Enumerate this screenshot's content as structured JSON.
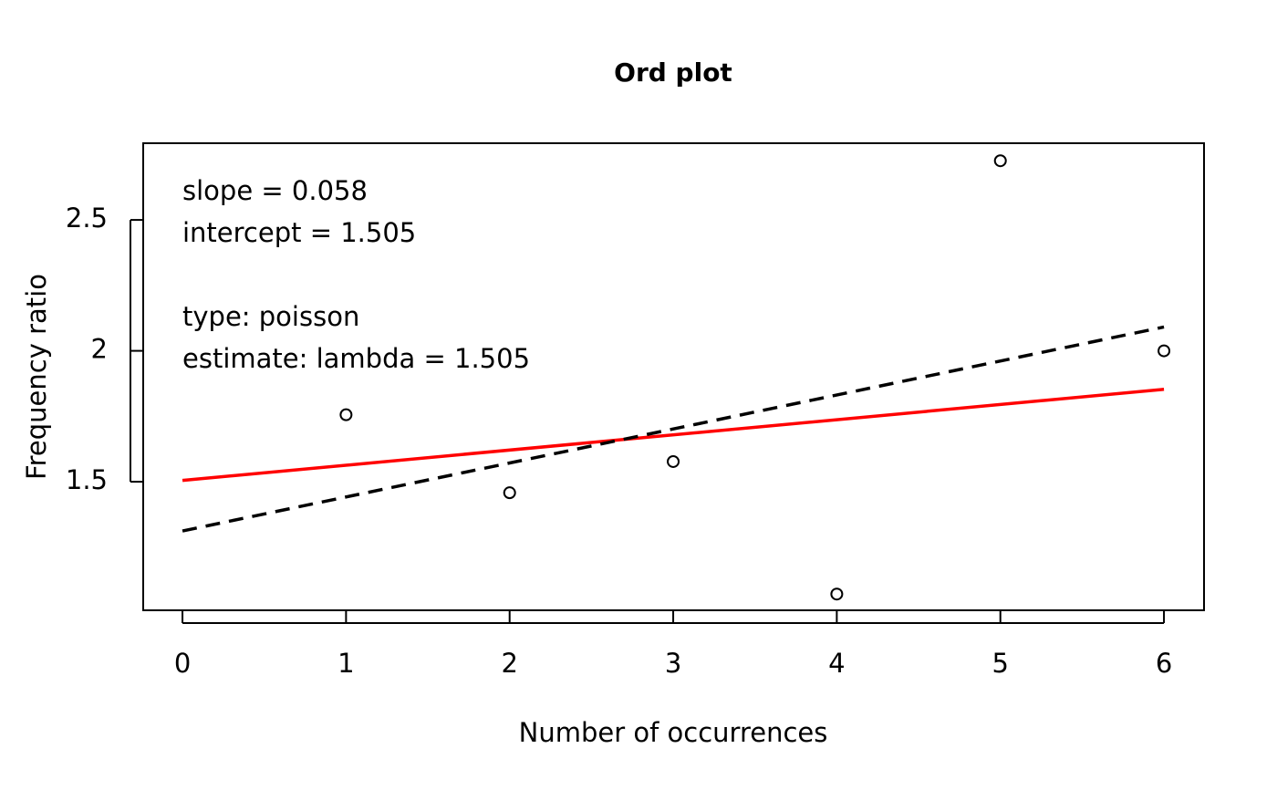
{
  "chart_data": {
    "type": "scatter",
    "title": "Ord plot",
    "x_label": "Number of occurrences",
    "y_label": "Frequency ratio",
    "x": [
      1,
      2,
      3,
      4,
      5,
      6
    ],
    "values": [
      1.756,
      1.458,
      1.577,
      1.071,
      2.726,
      2.0
    ],
    "color": "#000000",
    "lines": [
      {
        "color": "#ff0000",
        "style": "solid",
        "x": [
          0,
          6
        ],
        "values": [
          1.505,
          1.853
        ]
      },
      {
        "color": "#000000",
        "style": "dashed",
        "x": [
          0,
          6
        ],
        "values": [
          1.312,
          2.091
        ]
      }
    ],
    "annotations": [
      "slope = 0.058",
      "intercept = 1.505",
      "type: poisson",
      "estimate: lambda = 1.505"
    ],
    "xlim": [
      -0.24,
      6.245
    ],
    "ylim": [
      1.009,
      2.793
    ],
    "xticks": [
      0,
      1,
      2,
      3,
      4,
      5,
      6
    ],
    "yticks": [
      1.5,
      2,
      2.5
    ],
    "grid": false
  }
}
